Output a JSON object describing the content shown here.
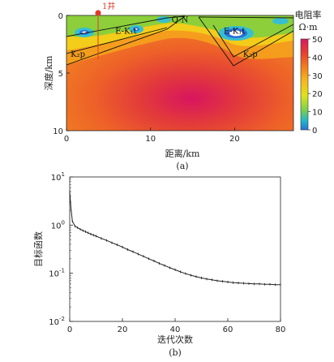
{
  "chart_data": [
    {
      "type": "heatmap",
      "panel": "(a)",
      "xlabel": "距离/km",
      "ylabel": "深度/km",
      "xlim": [
        0,
        27
      ],
      "ylim": [
        10,
        0
      ],
      "x_ticks": [
        "0",
        "10",
        "20"
      ],
      "y_ticks": [
        "0",
        "5",
        "10"
      ],
      "colorbar": {
        "title": "电阻率",
        "unit": "Ω·m",
        "range": [
          0,
          50
        ],
        "ticks": [
          "50",
          "40",
          "30",
          "20",
          "10",
          "0"
        ],
        "colors": [
          "#d81b60",
          "#e63f2e",
          "#f37b1d",
          "#f6b41e",
          "#dfe21c",
          "#7bd04b",
          "#1fb8c8",
          "#2a6fd8"
        ]
      },
      "well": {
        "label": "1井",
        "x": 3.7,
        "color": "#e03a2a"
      },
      "annotations": [
        {
          "text": "E-K₁t",
          "x": 5.8,
          "y": 1.3
        },
        {
          "text": "Q-N",
          "x": 12.5,
          "y": 0.3
        },
        {
          "text": "E-K₁t",
          "x": 18.7,
          "y": 1.3
        },
        {
          "text": "K₂p",
          "x": 0.5,
          "y": 3.3
        },
        {
          "text": "K₂p",
          "x": 21.0,
          "y": 3.3
        }
      ]
    },
    {
      "type": "line",
      "panel": "(b)",
      "xlabel": "迭代次数",
      "ylabel": "目标函数",
      "xlim": [
        0,
        80
      ],
      "ylim": [
        0.01,
        10
      ],
      "yscale": "log",
      "x_ticks": [
        "0",
        "20",
        "40",
        "60",
        "80"
      ],
      "y_ticks": [
        {
          "base": "10",
          "exp": "1",
          "value": 10
        },
        {
          "base": "10",
          "exp": "0",
          "value": 1
        },
        {
          "base": "10",
          "exp": "-1",
          "value": 0.1
        },
        {
          "base": "10",
          "exp": "-2",
          "value": 0.01
        }
      ],
      "series": [
        {
          "x": [
            0,
            0.5,
            1,
            2,
            3,
            4,
            5,
            6,
            7,
            8,
            9,
            10,
            12,
            14,
            16,
            18,
            20,
            22,
            24,
            26,
            28,
            30,
            32,
            34,
            36,
            38,
            40,
            42,
            44,
            46,
            48,
            50,
            52,
            54,
            56,
            58,
            60,
            62,
            64,
            66,
            68,
            70,
            72,
            74,
            76,
            78,
            80
          ],
          "values": [
            5.0,
            2.2,
            1.2,
            0.95,
            0.88,
            0.82,
            0.77,
            0.73,
            0.69,
            0.65,
            0.62,
            0.59,
            0.53,
            0.48,
            0.43,
            0.39,
            0.35,
            0.31,
            0.28,
            0.25,
            0.225,
            0.2,
            0.18,
            0.16,
            0.145,
            0.13,
            0.118,
            0.107,
            0.098,
            0.091,
            0.085,
            0.08,
            0.076,
            0.073,
            0.07,
            0.068,
            0.066,
            0.064,
            0.063,
            0.062,
            0.061,
            0.06,
            0.06,
            0.059,
            0.059,
            0.058,
            0.058
          ]
        }
      ]
    }
  ]
}
